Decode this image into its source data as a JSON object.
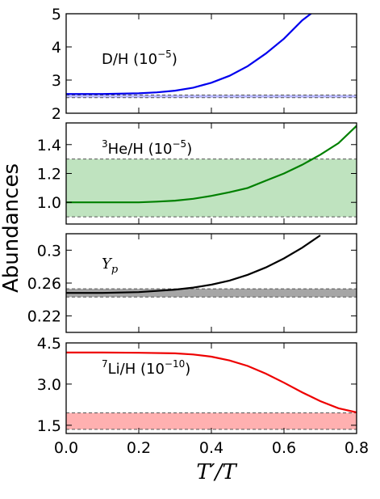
{
  "chart_data": {
    "type": "line",
    "ylabel": "Abundances",
    "xlabel_var": "T′/T",
    "xlim": [
      0.0,
      0.8
    ],
    "xticks": [
      0.0,
      0.2,
      0.4,
      0.6,
      0.8
    ],
    "xtick_labels": [
      "0.0",
      "0.2",
      "0.4",
      "0.6",
      "0.8"
    ],
    "panels": [
      {
        "label_main": "D/H (10",
        "label_exp": "−5",
        "label_close": ")",
        "color": "#0000ee",
        "band_color": "#8080ff",
        "ylim": [
          2,
          5
        ],
        "yticks": [
          2,
          3,
          4,
          5
        ],
        "ytick_labels": [
          "2",
          "3",
          "4",
          "5"
        ],
        "band": [
          2.47,
          2.55
        ],
        "series": [
          {
            "x": [
              0.0,
              0.1,
              0.2,
              0.25,
              0.3,
              0.35,
              0.4,
              0.45,
              0.5,
              0.55,
              0.6,
              0.65,
              0.68
            ],
            "y": [
              2.58,
              2.58,
              2.6,
              2.63,
              2.68,
              2.77,
              2.92,
              3.13,
              3.42,
              3.8,
              4.25,
              4.8,
              5.05
            ]
          }
        ]
      },
      {
        "label_sup": "3",
        "label_main": "He/H (10",
        "label_exp": "−5",
        "label_close": ")",
        "color": "#008000",
        "band_color": "#bfe3bf",
        "ylim": [
          0.85,
          1.55
        ],
        "yticks": [
          1.0,
          1.2,
          1.4
        ],
        "ytick_labels": [
          "1.0",
          "1.2",
          "1.4"
        ],
        "band": [
          0.9,
          1.3
        ],
        "series": [
          {
            "x": [
              0.0,
              0.1,
              0.2,
              0.25,
              0.3,
              0.35,
              0.4,
              0.45,
              0.5,
              0.55,
              0.6,
              0.65,
              0.7,
              0.75,
              0.8
            ],
            "y": [
              1.0,
              1.0,
              1.0,
              1.005,
              1.012,
              1.025,
              1.045,
              1.07,
              1.1,
              1.15,
              1.2,
              1.26,
              1.33,
              1.41,
              1.53
            ]
          }
        ]
      },
      {
        "label_var": "Y",
        "label_sub": "p",
        "color": "#000000",
        "band_color": "#a6a6a6",
        "ylim": [
          0.2,
          0.32
        ],
        "yticks": [
          0.22,
          0.26,
          0.3
        ],
        "ytick_labels": [
          "0.22",
          "0.26",
          "0.3"
        ],
        "band": [
          0.243,
          0.253
        ],
        "series": [
          {
            "x": [
              0.0,
              0.1,
              0.2,
              0.25,
              0.3,
              0.35,
              0.4,
              0.45,
              0.5,
              0.55,
              0.6,
              0.65,
              0.7
            ],
            "y": [
              0.248,
              0.248,
              0.249,
              0.2505,
              0.252,
              0.2545,
              0.258,
              0.263,
              0.27,
              0.279,
              0.29,
              0.303,
              0.318
            ]
          }
        ]
      },
      {
        "label_sup": "7",
        "label_main": "Li/H (10",
        "label_exp": "−10",
        "label_close": ")",
        "color": "#ee0000",
        "band_color": "#ffb0b0",
        "ylim": [
          1.2,
          4.5
        ],
        "yticks": [
          1.5,
          3.0,
          4.5
        ],
        "ytick_labels": [
          "1.5",
          "3.0",
          "4.5"
        ],
        "band": [
          1.35,
          1.95
        ],
        "series": [
          {
            "x": [
              0.0,
              0.1,
              0.2,
              0.3,
              0.35,
              0.4,
              0.45,
              0.5,
              0.55,
              0.6,
              0.65,
              0.7,
              0.75,
              0.8
            ],
            "y": [
              4.15,
              4.15,
              4.14,
              4.12,
              4.08,
              4.0,
              3.86,
              3.66,
              3.38,
              3.05,
              2.7,
              2.38,
              2.12,
              1.97
            ]
          }
        ]
      }
    ]
  }
}
